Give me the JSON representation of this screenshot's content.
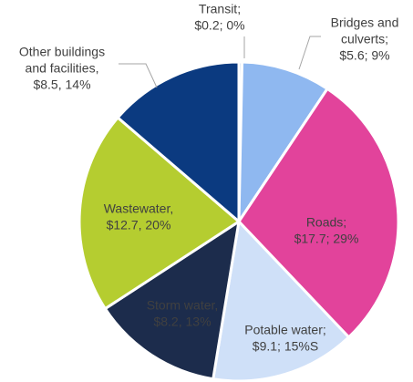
{
  "chart_data": {
    "type": "pie",
    "categories": [
      [
        "Transit;"
      ],
      [
        "Bridges and",
        "culverts;"
      ],
      [
        "Roads;"
      ],
      [
        "Potable water;"
      ],
      [
        "Storm water,"
      ],
      [
        "Wastewater,"
      ],
      [
        "Other buildings",
        "and facilities,"
      ]
    ],
    "values": [
      0.2,
      5.6,
      17.7,
      9.1,
      8.2,
      12.7,
      8.5
    ],
    "value_labels": [
      "$0.2; 0%",
      "$5.6; 9%",
      "$17.7; 29%",
      "$9.1; 15%S",
      "$8.2, 13%",
      "$12.7, 20%",
      "$8.5, 14%"
    ],
    "colors": [
      "#c5d6ee",
      "#8fb8f0",
      "#e2439b",
      "#cfe0f8",
      "#1c2c4c",
      "#b5cd30",
      "#0b3a80"
    ]
  }
}
